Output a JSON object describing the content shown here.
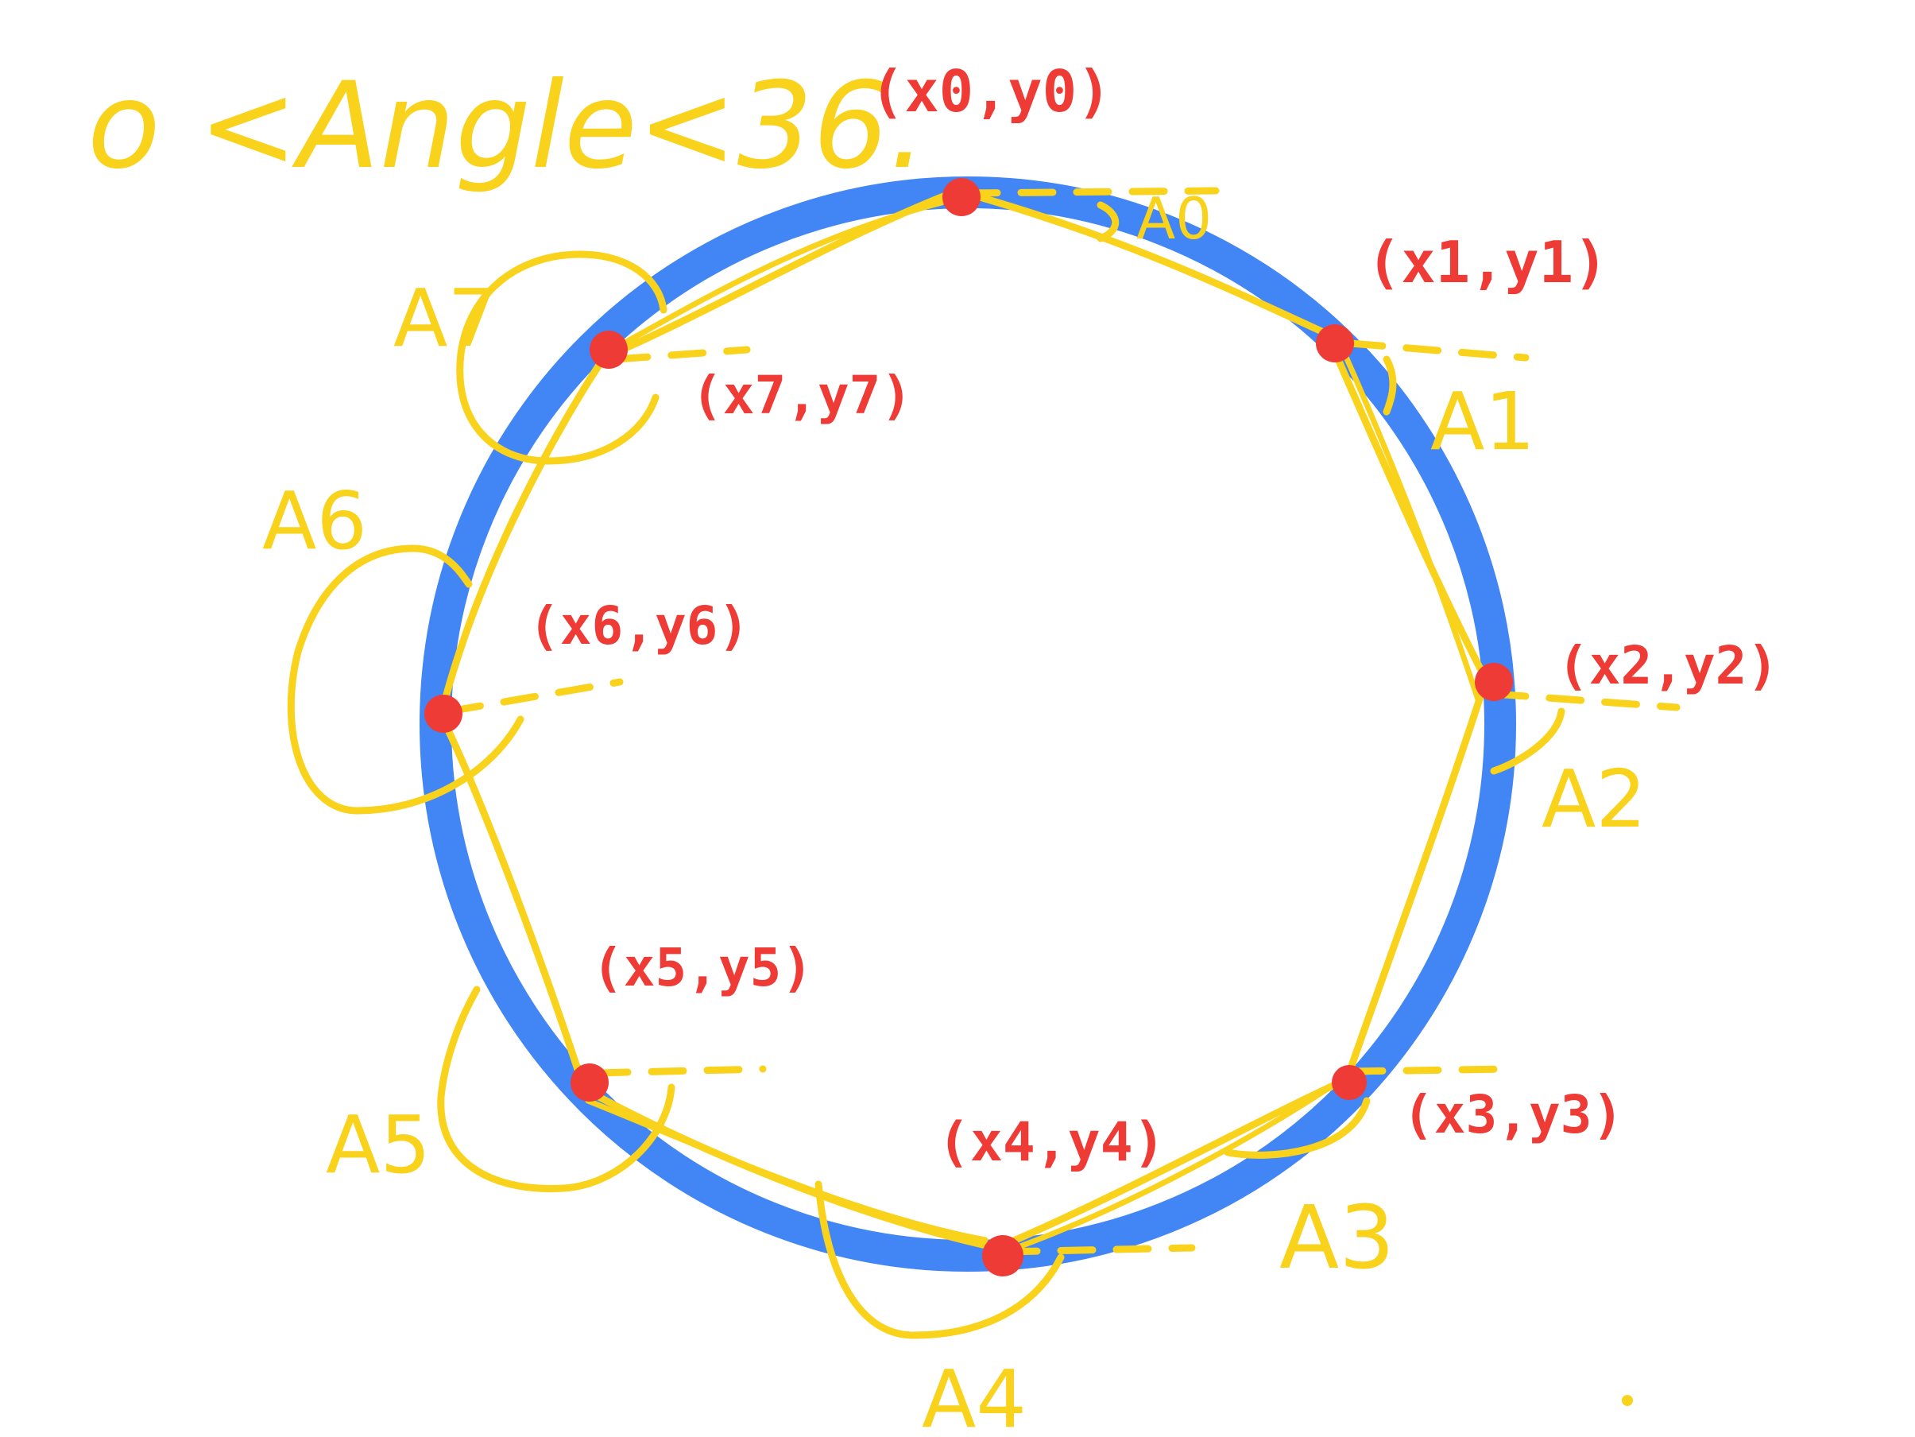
{
  "heading": "o <Angle<36.",
  "colors": {
    "circle": "#4285F4",
    "points": "#EE3B36",
    "polygon": "#F9D21C",
    "point_labels": "#EE3B36"
  },
  "points": [
    {
      "coord_label": "(x0,y0)",
      "angle_label": "A0"
    },
    {
      "coord_label": "(x1,y1)",
      "angle_label": "A1"
    },
    {
      "coord_label": "(x2,y2)",
      "angle_label": "A2"
    },
    {
      "coord_label": "(x3,y3)",
      "angle_label": "A3"
    },
    {
      "coord_label": "(x4,y4)",
      "angle_label": "A4"
    },
    {
      "coord_label": "(x5,y5)",
      "angle_label": "A5"
    },
    {
      "coord_label": "(x6,y6)",
      "angle_label": "A6"
    },
    {
      "coord_label": "(x7,y7)",
      "angle_label": "A7"
    }
  ]
}
